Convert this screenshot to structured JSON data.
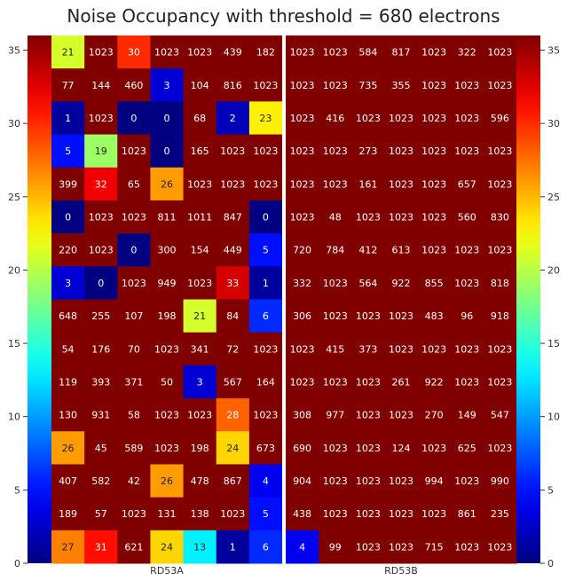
{
  "chart_data": {
    "type": "heatmap",
    "title": "Noise Occupancy with threshold = 680 electrons",
    "xlabel": "",
    "ylabel": "",
    "chips": [
      "RD53A",
      "RD53B"
    ],
    "columns_per_chip": 7,
    "rows": 16,
    "value_axis_ticks": [
      0,
      5,
      10,
      15,
      20,
      25,
      30,
      35
    ],
    "value_axis_range": [
      0,
      36
    ],
    "colorbar_ticks": [
      0,
      5,
      10,
      15,
      20,
      25,
      30,
      35
    ],
    "colorbar_range": [
      0,
      36
    ],
    "colormap": "jet",
    "separator_color": "#ffffff",
    "values_top_to_bottom": [
      [
        21,
        1023,
        30,
        1023,
        1023,
        439,
        182,
        1023,
        1023,
        584,
        817,
        1023,
        322,
        1023
      ],
      [
        77,
        144,
        460,
        3,
        104,
        816,
        1023,
        1023,
        1023,
        735,
        355,
        1023,
        1023,
        1023
      ],
      [
        1,
        1023,
        0,
        0,
        68,
        2,
        23,
        1023,
        416,
        1023,
        1023,
        1023,
        1023,
        596
      ],
      [
        5,
        19,
        1023,
        0,
        165,
        1023,
        1023,
        1023,
        1023,
        273,
        1023,
        1023,
        1023,
        1023
      ],
      [
        399,
        32,
        65,
        26,
        1023,
        1023,
        1023,
        1023,
        1023,
        161,
        1023,
        1023,
        657,
        1023
      ],
      [
        0,
        1023,
        1023,
        811,
        1011,
        847,
        0,
        1023,
        48,
        1023,
        1023,
        1023,
        560,
        830
      ],
      [
        220,
        1023,
        0,
        300,
        154,
        449,
        5,
        720,
        784,
        412,
        613,
        1023,
        1023,
        1023
      ],
      [
        3,
        0,
        1023,
        949,
        1023,
        33,
        1,
        332,
        1023,
        564,
        922,
        855,
        1023,
        818
      ],
      [
        648,
        255,
        107,
        198,
        21,
        84,
        6,
        306,
        1023,
        1023,
        1023,
        483,
        96,
        918
      ],
      [
        54,
        176,
        70,
        1023,
        341,
        72,
        1023,
        1023,
        415,
        373,
        1023,
        1023,
        1023,
        1023
      ],
      [
        119,
        393,
        371,
        50,
        3,
        567,
        164,
        1023,
        1023,
        1023,
        261,
        922,
        1023,
        1023
      ],
      [
        130,
        931,
        58,
        1023,
        1023,
        28,
        1023,
        308,
        977,
        1023,
        1023,
        270,
        149,
        547
      ],
      [
        26,
        45,
        589,
        1023,
        198,
        24,
        673,
        690,
        1023,
        1023,
        124,
        1023,
        625,
        1023
      ],
      [
        407,
        582,
        42,
        26,
        478,
        867,
        4,
        904,
        1023,
        1023,
        1023,
        994,
        1023,
        990
      ],
      [
        189,
        57,
        1023,
        131,
        138,
        1023,
        5,
        438,
        1023,
        1023,
        1023,
        1023,
        861,
        235
      ],
      [
        27,
        31,
        621,
        24,
        13,
        1,
        6,
        4,
        99,
        1023,
        1023,
        715,
        1023,
        1023
      ]
    ]
  }
}
